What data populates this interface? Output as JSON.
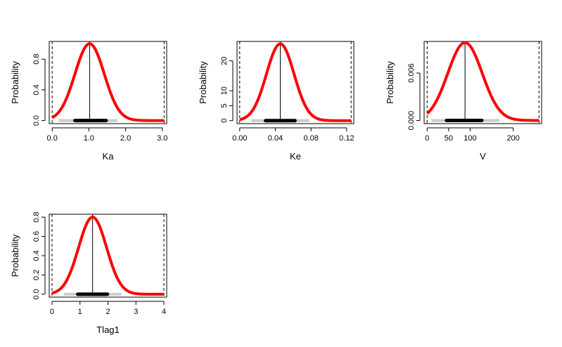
{
  "chart_data": [
    {
      "type": "line",
      "xlabel": "Ka",
      "ylabel": "Probability",
      "xticks": [
        "0.0",
        "1.0",
        "2.0",
        "3.0"
      ],
      "xtick_values": [
        0,
        1,
        2,
        3
      ],
      "yticks": [
        "0.0",
        "0.4",
        "0.8"
      ],
      "ytick_values": [
        0,
        0.4,
        0.8
      ],
      "xlim": [
        -0.08,
        3.12
      ],
      "ylim": [
        -0.04,
        1.03
      ],
      "distribution": {
        "mean": 1.02,
        "sd": 0.4,
        "peak": 1.0,
        "x_range": [
          0.0,
          3.05
        ]
      },
      "median": 1.02,
      "bounds": [
        0.0,
        3.05
      ],
      "interval_95": [
        0.18,
        1.78
      ],
      "interval_50": [
        0.62,
        1.47
      ],
      "curve_color": "#ff0000",
      "outer_interval_color": "#cccccc",
      "inner_interval_color": "#000000"
    },
    {
      "type": "line",
      "xlabel": "Ke",
      "ylabel": "Probability",
      "xticks": [
        "0.00",
        "0.04",
        "0.08",
        "0.12"
      ],
      "xtick_values": [
        0,
        0.04,
        0.08,
        0.12
      ],
      "yticks": [
        "0",
        "5",
        "10",
        "20"
      ],
      "ytick_values": [
        0,
        5,
        10,
        20
      ],
      "xlim": [
        -0.003,
        0.128
      ],
      "ylim": [
        -1,
        26.5
      ],
      "distribution": {
        "mean": 0.0455,
        "sd": 0.0155,
        "peak": 25.7,
        "x_range": [
          0.0,
          0.125
        ]
      },
      "median": 0.0455,
      "bounds": [
        0.0,
        0.125
      ],
      "interval_95": [
        0.013,
        0.078
      ],
      "interval_50": [
        0.029,
        0.062
      ],
      "curve_color": "#ff0000",
      "outer_interval_color": "#cccccc",
      "inner_interval_color": "#000000"
    },
    {
      "type": "line",
      "xlabel": "V",
      "ylabel": "Probability",
      "xticks": [
        "0",
        "50",
        "100",
        "200"
      ],
      "xtick_values": [
        0,
        50,
        100,
        200
      ],
      "yticks": [
        "0.000",
        "0.006"
      ],
      "ytick_values": [
        0,
        0.006
      ],
      "xlim": [
        -7,
        266
      ],
      "ylim": [
        -0.0004,
        0.01
      ],
      "distribution": {
        "mean": 88,
        "sd": 40,
        "peak": 0.00985,
        "x_range": [
          0,
          260
        ]
      },
      "median": 88,
      "bounds": [
        0,
        260
      ],
      "interval_95": [
        10,
        168
      ],
      "interval_50": [
        45,
        127
      ],
      "curve_color": "#ff0000",
      "outer_interval_color": "#cccccc",
      "inner_interval_color": "#000000"
    },
    {
      "type": "line",
      "xlabel": "Tlag1",
      "ylabel": "Probability",
      "xticks": [
        "0",
        "1",
        "2",
        "3",
        "4"
      ],
      "xtick_values": [
        0,
        1,
        2,
        3,
        4
      ],
      "yticks": [
        "0.0",
        "0.2",
        "0.4",
        "0.6",
        "0.8"
      ],
      "ytick_values": [
        0,
        0.2,
        0.4,
        0.6,
        0.8
      ],
      "xlim": [
        -0.1,
        4.1
      ],
      "ylim": [
        -0.03,
        0.83
      ],
      "distribution": {
        "mean": 1.45,
        "sd": 0.5,
        "peak": 0.8,
        "x_range": [
          0.0,
          4.0
        ]
      },
      "median": 1.45,
      "bounds": [
        0.0,
        4.0
      ],
      "interval_95": [
        0.42,
        2.48
      ],
      "interval_50": [
        0.92,
        1.98
      ],
      "curve_color": "#ff0000",
      "outer_interval_color": "#cccccc",
      "inner_interval_color": "#000000"
    }
  ]
}
